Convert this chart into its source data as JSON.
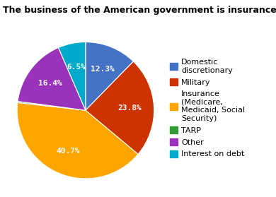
{
  "title": "The business of the American government is insurance",
  "slices": [
    {
      "label": "Domestic\ndiscretionary",
      "value": 12.3,
      "color": "#4472C4"
    },
    {
      "label": "Military",
      "value": 23.8,
      "color": "#CC3300"
    },
    {
      "label": "Insurance\n(Medicare,\nMedicaid, Social\nSecurity)",
      "value": 40.7,
      "color": "#FFA500"
    },
    {
      "label": "TARP",
      "value": 0.3,
      "color": "#339933"
    },
    {
      "label": "Other",
      "value": 16.4,
      "color": "#9933BB"
    },
    {
      "label": "Interest on debt",
      "value": 6.5,
      "color": "#00AACC"
    }
  ],
  "title_fontsize": 9,
  "label_fontsize": 8,
  "legend_fontsize": 8,
  "background_color": "#ffffff"
}
